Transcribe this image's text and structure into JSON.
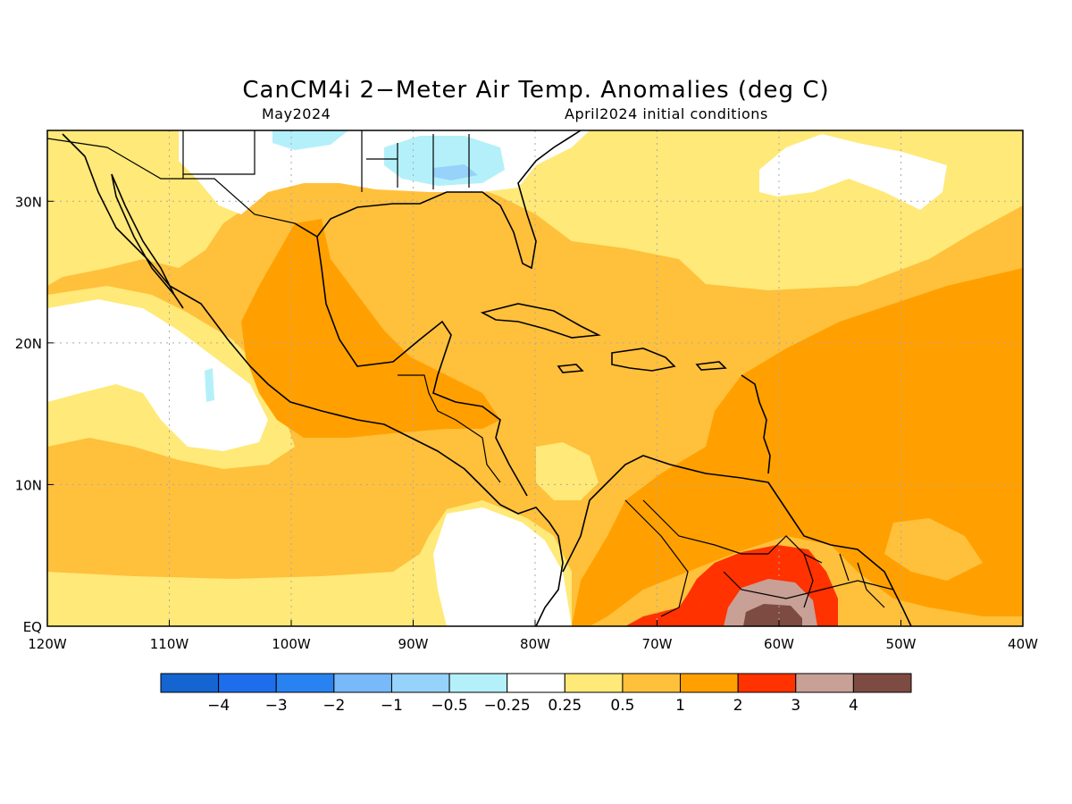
{
  "header": {
    "title": "CanCM4i 2−Meter Air Temp. Anomalies (deg C)",
    "forecast_month": "May2024",
    "init_text": "April2024 initial conditions"
  },
  "map": {
    "lon_range": [
      -120,
      -40
    ],
    "lat_range": [
      0,
      35
    ],
    "lon_ticks": [
      {
        "value": -120,
        "label": "120W"
      },
      {
        "value": -110,
        "label": "110W"
      },
      {
        "value": -100,
        "label": "100W"
      },
      {
        "value": -90,
        "label": "90W"
      },
      {
        "value": -80,
        "label": "80W"
      },
      {
        "value": -70,
        "label": "70W"
      },
      {
        "value": -60,
        "label": "60W"
      },
      {
        "value": -50,
        "label": "50W"
      },
      {
        "value": -40,
        "label": "40W"
      }
    ],
    "lat_ticks": [
      {
        "value": 0,
        "label": "EQ"
      },
      {
        "value": 10,
        "label": "10N"
      },
      {
        "value": 20,
        "label": "20N"
      },
      {
        "value": 30,
        "label": "30N"
      }
    ],
    "grid": true
  },
  "colorbar": {
    "colors": [
      "#1464d2",
      "#1e6eeb",
      "#2882f0",
      "#78b9fa",
      "#96d2fa",
      "#b4f0fa",
      "#ffffff",
      "#ffe978",
      "#ffc03c",
      "#ffa000",
      "#ff3200",
      "#c8a096",
      "#7d4b41"
    ],
    "labels": [
      "−4",
      "−3",
      "−2",
      "−1",
      "−0.5",
      "−0.25",
      "0.25",
      "0.5",
      "1",
      "2",
      "3",
      "4"
    ]
  }
}
